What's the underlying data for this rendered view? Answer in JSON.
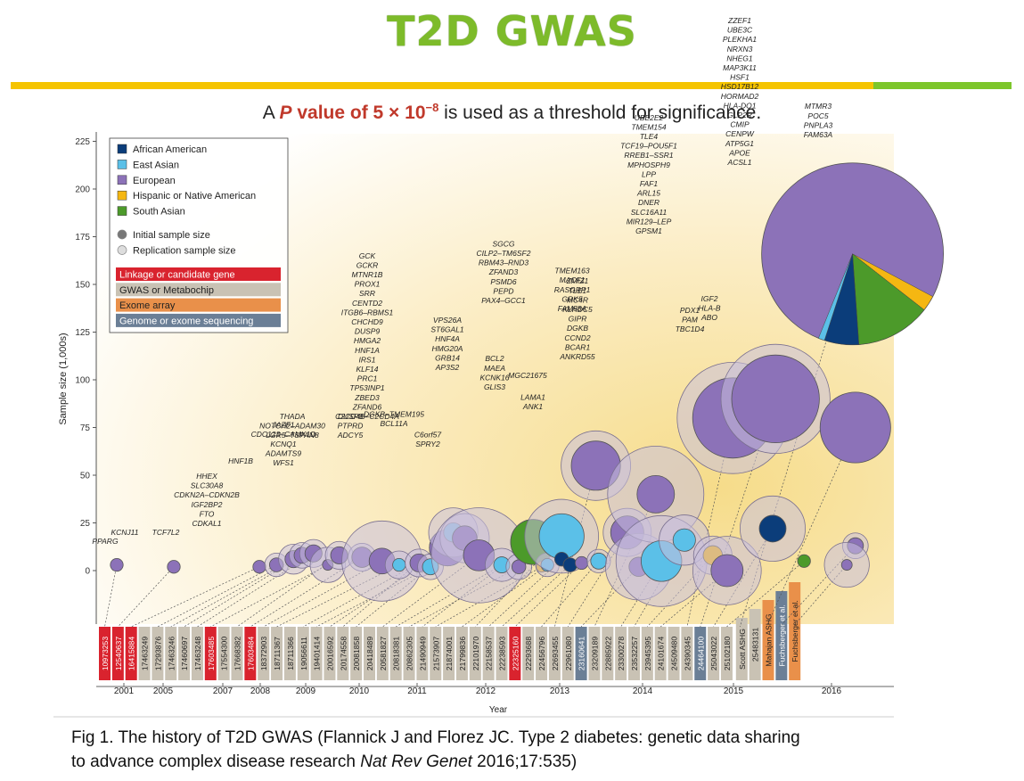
{
  "slide": {
    "title": "T2D GWAS",
    "threshold_pre": "A ",
    "threshold_p": "P",
    "threshold_value": " value of 5 × 10",
    "threshold_exp": "−8",
    "threshold_post": " is used as a threshold for significance.",
    "caption_line1": "Fig 1. The history of T2D GWAS (Flannick J and Florez JC. Type 2 diabetes: genetic data sharing",
    "caption_line2_pre": "to advance complex disease research ",
    "caption_line2_journal": "Nat Rev Genet",
    "caption_line2_post": " 2016;17:535)"
  },
  "colors": {
    "african_american": "#0b3d7a",
    "east_asian": "#5bc0e8",
    "european": "#8c72b8",
    "hispanic": "#f5b712",
    "south_asian": "#4c9a2a",
    "linkage": "#d9232e",
    "gwas": "#c9c2b4",
    "exome": "#e9904a",
    "sequencing": "#6b7f96"
  },
  "chart_data": {
    "type": "bubble",
    "ylabel": "Sample size (1,000s)",
    "xlabel": "Year",
    "ylim": [
      -10,
      225
    ],
    "yticks": [
      0,
      25,
      50,
      75,
      100,
      125,
      150,
      175,
      200,
      225
    ],
    "years": [
      "2001",
      "2005",
      "2007",
      "2008",
      "2009",
      "2010",
      "2011",
      "2012",
      "2013",
      "2014",
      "2015",
      "2016"
    ],
    "legend": {
      "populations": [
        {
          "label": "African American",
          "color": "#0b3d7a"
        },
        {
          "label": "East Asian",
          "color": "#5bc0e8"
        },
        {
          "label": "European",
          "color": "#8c72b8"
        },
        {
          "label": "Hispanic or Native American",
          "color": "#f5b712"
        },
        {
          "label": "South Asian",
          "color": "#4c9a2a"
        }
      ],
      "sizes": [
        "Initial sample size",
        "Replication sample size"
      ],
      "methods": [
        {
          "label": "Linkage or candidate gene",
          "type": "linkage"
        },
        {
          "label": "GWAS or Metabochip",
          "type": "gwas"
        },
        {
          "label": "Exome array",
          "type": "exome"
        },
        {
          "label": "Genome or exome sequencing",
          "type": "sequencing"
        }
      ]
    },
    "studies": [
      {
        "pmid": "10973253",
        "type": "linkage"
      },
      {
        "pmid": "12540637",
        "type": "linkage"
      },
      {
        "pmid": "16415884",
        "type": "linkage"
      },
      {
        "pmid": "17463249",
        "type": "gwas"
      },
      {
        "pmid": "17293876",
        "type": "gwas"
      },
      {
        "pmid": "17463246",
        "type": "gwas"
      },
      {
        "pmid": "17460697",
        "type": "gwas"
      },
      {
        "pmid": "17463248",
        "type": "gwas"
      },
      {
        "pmid": "17603485",
        "type": "linkage"
      },
      {
        "pmid": "17554300",
        "type": "gwas"
      },
      {
        "pmid": "17668382",
        "type": "gwas"
      },
      {
        "pmid": "17603484",
        "type": "linkage"
      },
      {
        "pmid": "18372903",
        "type": "gwas"
      },
      {
        "pmid": "18711367",
        "type": "gwas"
      },
      {
        "pmid": "18711366",
        "type": "gwas"
      },
      {
        "pmid": "19056611",
        "type": "gwas"
      },
      {
        "pmid": "19401414",
        "type": "gwas"
      },
      {
        "pmid": "20016592",
        "type": "gwas"
      },
      {
        "pmid": "20174558",
        "type": "gwas"
      },
      {
        "pmid": "20081858",
        "type": "gwas"
      },
      {
        "pmid": "20418489",
        "type": "gwas"
      },
      {
        "pmid": "20581827",
        "type": "gwas"
      },
      {
        "pmid": "20818381",
        "type": "gwas"
      },
      {
        "pmid": "20862305",
        "type": "gwas"
      },
      {
        "pmid": "21490949",
        "type": "gwas"
      },
      {
        "pmid": "21573907",
        "type": "gwas"
      },
      {
        "pmid": "21874001",
        "type": "gwas"
      },
      {
        "pmid": "21799836",
        "type": "gwas"
      },
      {
        "pmid": "22101970",
        "type": "gwas"
      },
      {
        "pmid": "22158537",
        "type": "gwas"
      },
      {
        "pmid": "22238593",
        "type": "gwas"
      },
      {
        "pmid": "22325160",
        "type": "linkage"
      },
      {
        "pmid": "22293688",
        "type": "gwas"
      },
      {
        "pmid": "22456796",
        "type": "gwas"
      },
      {
        "pmid": "22693455",
        "type": "gwas"
      },
      {
        "pmid": "22961080",
        "type": "gwas"
      },
      {
        "pmid": "23160641",
        "type": "sequencing"
      },
      {
        "pmid": "23209189",
        "type": "gwas"
      },
      {
        "pmid": "22885922",
        "type": "gwas"
      },
      {
        "pmid": "23300278",
        "type": "gwas"
      },
      {
        "pmid": "23532257",
        "type": "gwas"
      },
      {
        "pmid": "23945395",
        "type": "gwas"
      },
      {
        "pmid": "24101674",
        "type": "gwas"
      },
      {
        "pmid": "24509480",
        "type": "gwas"
      },
      {
        "pmid": "24390345",
        "type": "gwas"
      },
      {
        "pmid": "24464100",
        "type": "sequencing"
      },
      {
        "pmid": "25043022",
        "type": "gwas"
      },
      {
        "pmid": "25102180",
        "type": "gwas"
      },
      {
        "pmid": "Scott ASHG",
        "type": "gwas"
      },
      {
        "pmid": "25483131",
        "type": "gwas"
      },
      {
        "pmid": "Mahajan ASHG",
        "type": "exome"
      },
      {
        "pmid": "Fuchsberger et al.",
        "type": "sequencing"
      },
      {
        "pmid": "Fuchsberger et al.",
        "type": "exome"
      }
    ],
    "gene_labels": [
      "PPARG",
      "KCNJ11",
      "TCF7L2",
      "HHEX",
      "SLC30A8",
      "CDKN2A–CDKN2B",
      "IGF2BP2",
      "FTO",
      "CDKAL1",
      "HNF1B",
      "JAZF1",
      "CDC123–CAMK1D",
      "KCNQ1",
      "ADAMTS9",
      "WFS1",
      "THADA",
      "NOTCH2–ADAM30",
      "LGR5–TSPAN8",
      "DUSP8",
      "PTPRD",
      "ADCY5",
      "DGKB–TMEM195",
      "BCL11A",
      "C6orf57",
      "SPRY2",
      "GCK",
      "GCKR",
      "MTNR1B",
      "PROX1",
      "SRR",
      "CENTD2",
      "ITGB6–RBMS1",
      "CHCHD9",
      "DUSP9",
      "HMGA2",
      "HNF1A",
      "IRS1",
      "KLF14",
      "PRC1",
      "TP53INP1",
      "ZBED3",
      "ZFAND6",
      "C2CD4B–C2CD4A",
      "SGCG",
      "CILP2–TM6SF2",
      "RBM43–RND3",
      "ZFAND3",
      "PSMD6",
      "PEPD",
      "PAX4–GCC1",
      "VPS26A",
      "ST6GAL1",
      "HNF4A",
      "HMG20A",
      "GRB14",
      "AP3S2",
      "BCL2",
      "MAEA",
      "KCNK16",
      "GLIS3",
      "MGC21675",
      "LAMA1",
      "ANK1",
      "TMEM163",
      "MACF1",
      "RASGRP1",
      "GRK5",
      "FAM58A",
      "ZMIZ1",
      "TLE1",
      "MC4R",
      "KLHDC5",
      "GIPR",
      "DGKB",
      "CCND2",
      "BCAR1",
      "ANKRD55",
      "UBE2E2",
      "TMEM154",
      "TLE4",
      "TCF19–POU5F1",
      "RREB1–SSR1",
      "MPHOSPH9",
      "LPP",
      "FAF1",
      "ARL15",
      "DNER",
      "SLC16A11",
      "MIR129–LEP",
      "GPSM1",
      "PDX1",
      "PAM",
      "TBC1D4",
      "IGF2",
      "HLA-B",
      "ABO",
      "ZZEF1",
      "UBE3C",
      "PLEKHA1",
      "NRXN3",
      "NHEG1",
      "MAP3K11",
      "HSF1",
      "HSD17B12",
      "HORMAD2",
      "HLA-DQ1",
      "GLP2R",
      "CMIP",
      "CENPW",
      "ATP5G1",
      "APOE",
      "ACSL1",
      "MTMR3",
      "POC5",
      "PNPLA3",
      "FAM63A"
    ],
    "bubbles": [
      {
        "year": 2001.0,
        "y": 3,
        "r_init": 1.2,
        "r_rep": 0,
        "pop": "european"
      },
      {
        "year": 2003.0,
        "y": 2,
        "r_init": 1.2,
        "r_rep": 0,
        "pop": "european"
      },
      {
        "year": 2006.0,
        "y": 2,
        "r_init": 1.2,
        "r_rep": 0,
        "pop": "european"
      },
      {
        "year": 2006.6,
        "y": 3,
        "r_init": 1.3,
        "r_rep": 2.2,
        "pop": "european"
      },
      {
        "year": 2007.2,
        "y": 6,
        "r_init": 1.6,
        "r_rep": 2.8,
        "pop": "european"
      },
      {
        "year": 2007.5,
        "y": 8,
        "r_init": 1.5,
        "r_rep": 2.4,
        "pop": "european"
      },
      {
        "year": 2007.9,
        "y": 9,
        "r_init": 1.6,
        "r_rep": 2.6,
        "pop": "european"
      },
      {
        "year": 2008.4,
        "y": 3,
        "r_init": 1.0,
        "r_rep": 3.3,
        "pop": "european"
      },
      {
        "year": 2008.8,
        "y": 8,
        "r_init": 1.6,
        "r_rep": 2.6,
        "pop": "european"
      },
      {
        "year": 2009.6,
        "y": 7,
        "r_init": 1.9,
        "r_rep": 2.6,
        "pop": "european"
      },
      {
        "year": 2010.3,
        "y": 5,
        "r_init": 2.4,
        "r_rep": 7.5,
        "pop": "european"
      },
      {
        "year": 2010.9,
        "y": 3,
        "r_init": 1.2,
        "r_rep": 2.6,
        "pop": "east_asian"
      },
      {
        "year": 2011.6,
        "y": 4,
        "r_init": 1.7,
        "r_rep": 2.6,
        "pop": "european"
      },
      {
        "year": 2012.0,
        "y": 2,
        "r_init": 1.5,
        "r_rep": 2.4,
        "pop": "east_asian"
      },
      {
        "year": 2012.6,
        "y": 12,
        "r_init": 3.4,
        "r_rep": 3.4,
        "pop": "european"
      },
      {
        "year": 2012.8,
        "y": 20,
        "r_init": 1.8,
        "r_rep": 4.6,
        "pop": "east_asian"
      },
      {
        "year": 2013.2,
        "y": 17,
        "r_init": 2.3,
        "r_rep": 4.6,
        "pop": "european"
      },
      {
        "year": 2013.7,
        "y": 8,
        "r_init": 2.9,
        "r_rep": 8.9,
        "pop": "european"
      },
      {
        "year": 2014.5,
        "y": 3,
        "r_init": 1.5,
        "r_rep": 3.1,
        "pop": "east_asian"
      },
      {
        "year": 2015.1,
        "y": 2,
        "r_init": 1.3,
        "r_rep": 2.4,
        "pop": "european"
      },
      {
        "year": 2015.6,
        "y": 15,
        "r_init": 4.2,
        "r_rep": 4.2,
        "pop": "south_asian"
      },
      {
        "year": 2015.9,
        "y": 2,
        "r_init": 1.0,
        "r_rep": 0,
        "pop": "hispanic"
      },
      {
        "year": 2016.1,
        "y": 3,
        "r_init": 1.2,
        "r_rep": 2.2,
        "pop": "east_asian"
      },
      {
        "year": 2016.6,
        "y": 18,
        "r_init": 4.2,
        "r_rep": 6.9,
        "pop": "east_asian"
      },
      {
        "year": 2016.6,
        "y": 6,
        "r_init": 1.3,
        "r_rep": 0,
        "pop": "african_american"
      },
      {
        "year": 2016.9,
        "y": 3,
        "r_init": 1.3,
        "r_rep": 0,
        "pop": "african_american"
      },
      {
        "year": 2017.3,
        "y": 4,
        "r_init": 1.2,
        "r_rep": 0,
        "pop": "european"
      },
      {
        "year": 2017.9,
        "y": 5,
        "r_init": 1.5,
        "r_rep": 2.2,
        "pop": "east_asian"
      },
      {
        "year": 2017.8,
        "y": 55,
        "r_init": 4.6,
        "r_rep": 6.5,
        "pop": "european"
      },
      {
        "year": 2018.9,
        "y": 20,
        "r_init": 3.1,
        "r_rep": 4.5,
        "pop": "european"
      },
      {
        "year": 2019.3,
        "y": 2,
        "r_init": 1.8,
        "r_rep": 6.2,
        "pop": "european"
      },
      {
        "year": 2019.9,
        "y": 40,
        "r_init": 3.5,
        "r_rep": 9.0,
        "pop": "european"
      },
      {
        "year": 2020.1,
        "y": 5,
        "r_init": 3.8,
        "r_rep": 8.5,
        "pop": "east_asian"
      },
      {
        "year": 2020.9,
        "y": 16,
        "r_init": 2.1,
        "r_rep": 4.7,
        "pop": "east_asian"
      },
      {
        "year": 2021.9,
        "y": 8,
        "r_init": 1.8,
        "r_rep": 3.6,
        "pop": "hispanic"
      },
      {
        "year": 2022.4,
        "y": 0,
        "r_init": 3.0,
        "r_rep": 6.4,
        "pop": "european"
      },
      {
        "year": 2022.6,
        "y": 80,
        "r_init": 7.5,
        "r_rep": 10.4,
        "pop": "european"
      },
      {
        "year": 2024.1,
        "y": 90,
        "r_init": 8.2,
        "r_rep": 10.2,
        "pop": "european"
      },
      {
        "year": 2024.0,
        "y": 22,
        "r_init": 2.5,
        "r_rep": 6.1,
        "pop": "african_american"
      },
      {
        "year": 2025.1,
        "y": 5,
        "r_init": 1.2,
        "r_rep": 0,
        "pop": "south_asian"
      },
      {
        "year": 2026.8,
        "y": 166,
        "r_init": 17.0,
        "r_rep": 0,
        "pop": "european"
      },
      {
        "year": 2026.9,
        "y": 75,
        "r_init": 6.6,
        "r_rep": 0,
        "pop": "european"
      },
      {
        "year": 2026.9,
        "y": 13,
        "r_init": 1.5,
        "r_rep": 2.4,
        "pop": "european"
      },
      {
        "year": 2026.6,
        "y": 3,
        "r_init": 1.0,
        "r_rep": 4.2,
        "pop": "european"
      }
    ]
  }
}
